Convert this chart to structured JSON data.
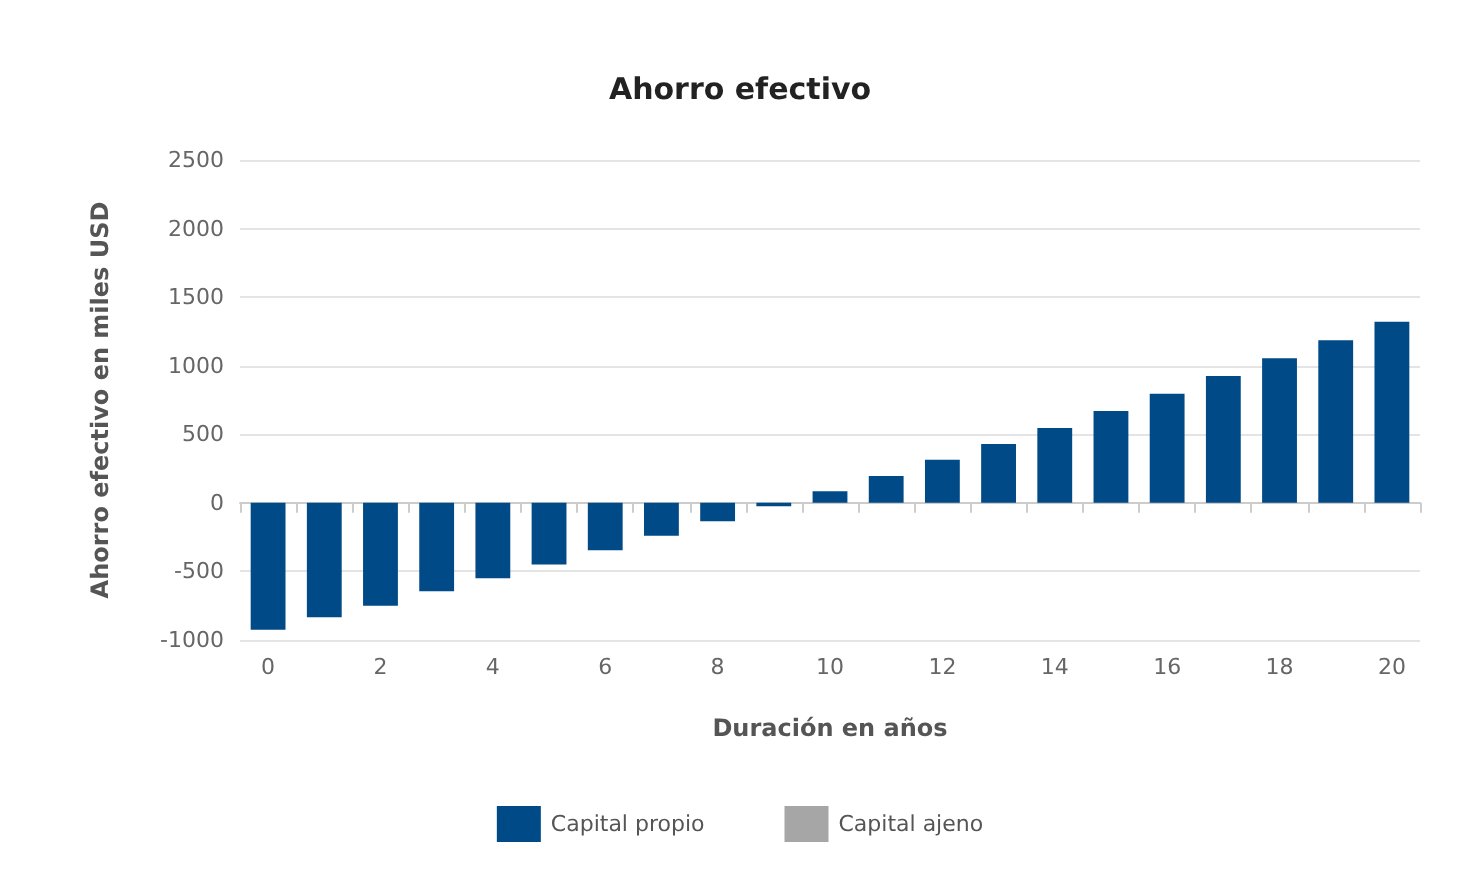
{
  "chart_data": {
    "type": "bar",
    "title": "Ahorro efectivo",
    "xlabel": "Duración en años",
    "ylabel": "Ahorro efectivo en miles USD",
    "categories": [
      "0",
      null,
      "2",
      null,
      "4",
      null,
      "6",
      null,
      "8",
      null,
      "10",
      null,
      "12",
      null,
      "14",
      null,
      "16",
      null,
      "18",
      null,
      "20"
    ],
    "series": [
      {
        "name": "Capital propio",
        "color": "#004a87",
        "values": [
          -925,
          -835,
          -750,
          -645,
          -550,
          -450,
          -345,
          -240,
          -135,
          -25,
          85,
          195,
          315,
          430,
          545,
          670,
          795,
          925,
          1055,
          1185,
          1320
        ]
      },
      {
        "name": "Capital ajeno",
        "color": "#a6a6a6",
        "values": [
          null,
          null,
          null,
          null,
          null,
          null,
          null,
          null,
          null,
          null,
          null,
          null,
          null,
          null,
          null,
          null,
          null,
          null,
          null,
          null,
          null
        ]
      }
    ],
    "ylim": [
      -1000,
      2500
    ],
    "yticks": [
      -1000,
      -500,
      0,
      500,
      1000,
      1500,
      2000,
      2500
    ],
    "grid": "y",
    "legend": "bottom"
  }
}
